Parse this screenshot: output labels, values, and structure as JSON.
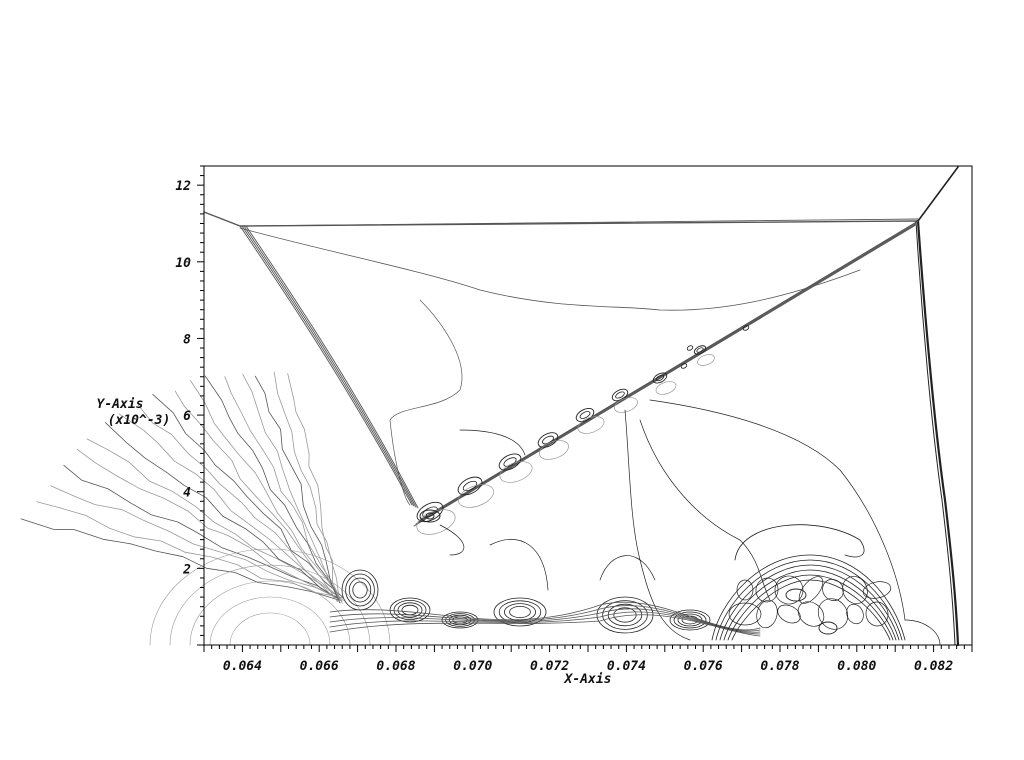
{
  "chart_data": {
    "type": "contour",
    "xlabel": "X-Axis",
    "ylabel": "Y-Axis",
    "ylabel_multiplier": "(x10^-3)",
    "xlim": [
      0.063,
      0.083
    ],
    "ylim": [
      0,
      12.5
    ],
    "x_ticks": [
      "0.064",
      "0.066",
      "0.068",
      "0.070",
      "0.072",
      "0.074",
      "0.076",
      "0.078",
      "0.080",
      "0.082"
    ],
    "y_ticks": [
      "2",
      "4",
      "6",
      "8",
      "10",
      "12"
    ],
    "grid": false,
    "colors": {
      "contour_dark": "#222222",
      "contour_mid": "#555555",
      "contour_light": "#999999",
      "axis": "#000000"
    }
  }
}
